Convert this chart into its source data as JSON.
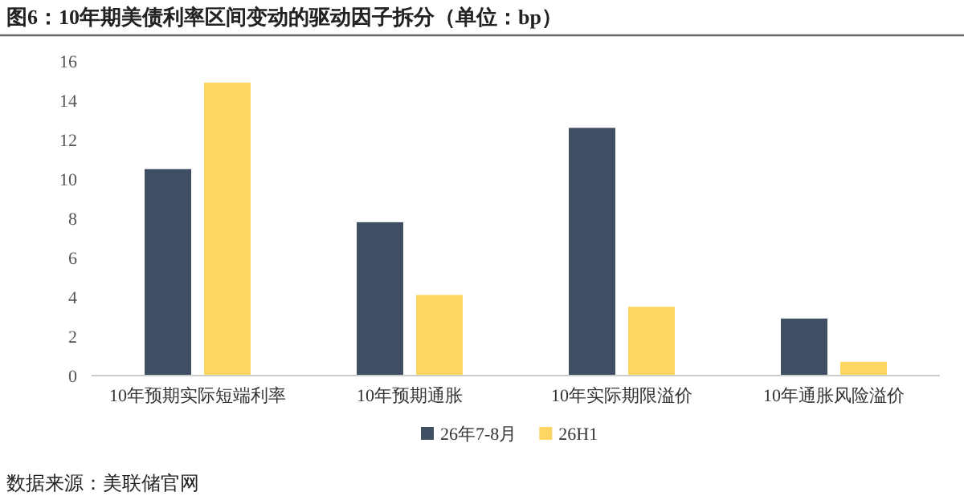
{
  "chart_data": {
    "type": "bar",
    "title": "图6：10年期美债利率区间变动的驱动因子拆分（单位：bp）",
    "categories": [
      "10年预期实际短端利率",
      "10年预期通胀",
      "10年实际期限溢价",
      "10年通胀风险溢价"
    ],
    "series": [
      {
        "name": "26年7-8月",
        "color": "#3f4e63",
        "values": [
          10.5,
          7.8,
          12.6,
          2.9
        ]
      },
      {
        "name": "26H1",
        "color": "#fdd562",
        "values": [
          14.9,
          4.1,
          3.5,
          0.7
        ]
      }
    ],
    "ylim": [
      0,
      16
    ],
    "yticks": [
      0,
      2,
      4,
      6,
      8,
      10,
      12,
      14,
      16
    ],
    "grid": false,
    "legend": "bottom",
    "annotations": [
      "数据来源：美联储官网"
    ]
  }
}
